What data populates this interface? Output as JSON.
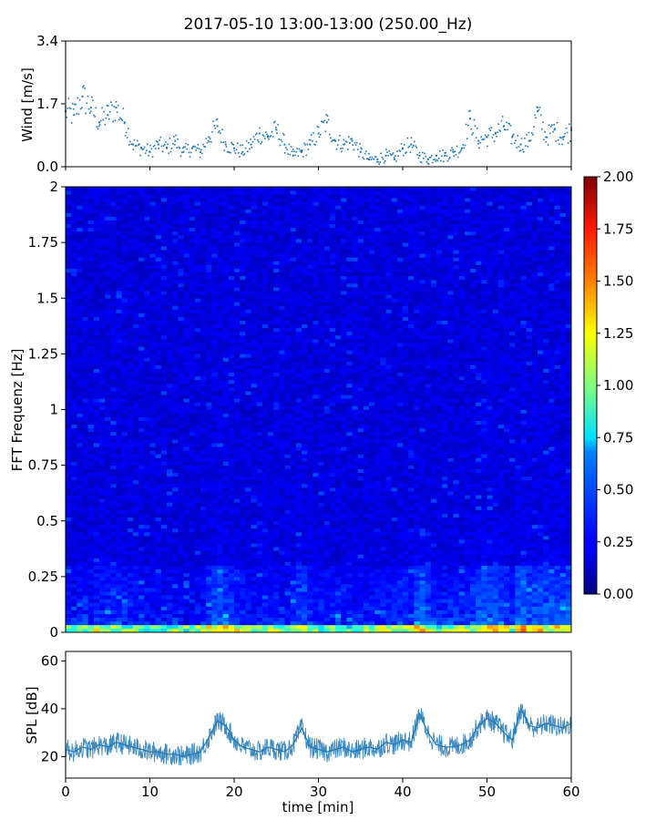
{
  "chart_data": [
    {
      "type": "scatter",
      "title": "2017-05-10 13:00-13:00 (250.00_Hz)",
      "ylabel": "Wind [m/s]",
      "xlim": [
        0,
        60
      ],
      "ylim": [
        0,
        3.4
      ],
      "yticks": [
        "0.0",
        "1.7",
        "3.4"
      ],
      "marker_color": "#1f77b4",
      "series": [
        {
          "x": [
            0,
            1,
            2,
            3,
            4,
            5,
            6,
            7,
            8,
            9,
            10,
            11,
            12,
            13,
            14,
            15,
            16,
            17,
            18,
            19,
            20,
            21,
            22,
            23,
            24,
            25,
            26,
            27,
            28,
            29,
            30,
            31,
            32,
            33,
            34,
            35,
            36,
            37,
            38,
            39,
            40,
            41,
            42,
            43,
            44,
            45,
            46,
            47,
            48,
            49,
            50,
            51,
            52,
            53,
            54,
            55,
            56,
            57,
            58,
            59,
            60
          ],
          "y": [
            1.5,
            1.4,
            1.9,
            1.6,
            1.2,
            1.4,
            1.6,
            1.2,
            0.6,
            0.5,
            0.4,
            0.6,
            0.5,
            0.7,
            0.4,
            0.5,
            0.4,
            0.8,
            1.1,
            0.6,
            0.5,
            0.4,
            0.6,
            0.9,
            0.8,
            1.0,
            0.6,
            0.3,
            0.4,
            0.6,
            0.9,
            1.2,
            0.7,
            0.6,
            0.7,
            0.4,
            0.2,
            0.2,
            0.3,
            0.2,
            0.5,
            0.6,
            0.3,
            0.2,
            0.3,
            0.3,
            0.4,
            0.5,
            1.3,
            0.7,
            0.8,
            0.9,
            1.1,
            0.8,
            0.6,
            0.7,
            1.5,
            0.8,
            1.0,
            0.8,
            1.0
          ]
        }
      ]
    },
    {
      "type": "heatmap",
      "ylabel": "FFT Frequenz [Hz]",
      "xlim": [
        0,
        60
      ],
      "ylim": [
        0,
        2
      ],
      "yticks": [
        "0",
        "0.25",
        "0.5",
        "0.75",
        "1",
        "1.25",
        "1.5",
        "1.75",
        "2"
      ],
      "colorbar": {
        "range": [
          0,
          2
        ],
        "ticks": [
          "0.00",
          "0.25",
          "0.50",
          "0.75",
          "1.00",
          "1.25",
          "1.50",
          "1.75",
          "2.00"
        ],
        "colormap": "jet"
      }
    },
    {
      "type": "line",
      "ylabel": "SPL [dB]",
      "xlabel": "time [min]",
      "xlim": [
        0,
        60
      ],
      "ylim": [
        11,
        64
      ],
      "xticks": [
        "0",
        "10",
        "20",
        "30",
        "40",
        "50",
        "60"
      ],
      "yticks": [
        "20",
        "40",
        "60"
      ],
      "line_color": "#1f77b4",
      "series": [
        {
          "x": [
            0,
            1,
            2,
            3,
            4,
            5,
            6,
            7,
            8,
            9,
            10,
            11,
            12,
            13,
            14,
            15,
            16,
            17,
            18,
            19,
            20,
            21,
            22,
            23,
            24,
            25,
            26,
            27,
            28,
            29,
            30,
            31,
            32,
            33,
            34,
            35,
            36,
            37,
            38,
            39,
            40,
            41,
            42,
            43,
            44,
            45,
            46,
            47,
            48,
            49,
            50,
            51,
            52,
            53,
            54,
            55,
            56,
            57,
            58,
            59,
            60
          ],
          "y": [
            23,
            22,
            24,
            23,
            25,
            24,
            26,
            25,
            24,
            23,
            22,
            22,
            21,
            21,
            20,
            21,
            22,
            28,
            35,
            33,
            27,
            24,
            23,
            22,
            24,
            23,
            22,
            25,
            32,
            24,
            23,
            22,
            23,
            24,
            22,
            23,
            24,
            23,
            26,
            25,
            27,
            26,
            38,
            30,
            25,
            24,
            24,
            25,
            27,
            33,
            36,
            34,
            30,
            27,
            40,
            33,
            32,
            34,
            33,
            32,
            34
          ]
        }
      ]
    }
  ]
}
